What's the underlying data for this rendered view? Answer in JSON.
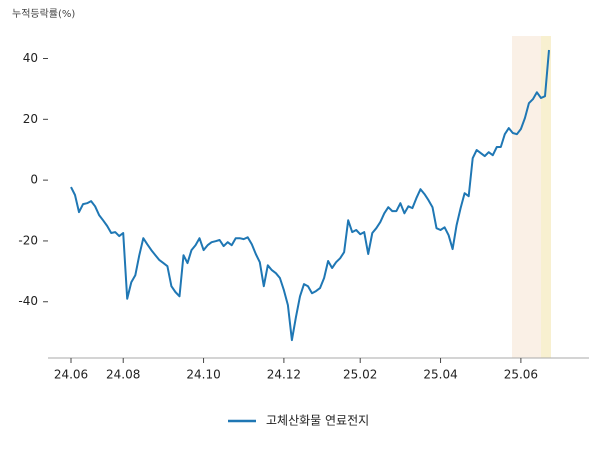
{
  "chart_data": {
    "type": "line",
    "y_label": "누적등락률(%)",
    "categories": [
      "24.06",
      null,
      null,
      null,
      null,
      null,
      null,
      null,
      null,
      null,
      null,
      null,
      null,
      "24.08",
      null,
      null,
      null,
      null,
      null,
      null,
      null,
      null,
      null,
      null,
      null,
      null,
      null,
      null,
      null,
      null,
      null,
      null,
      null,
      "24.10",
      null,
      null,
      null,
      null,
      null,
      null,
      null,
      null,
      null,
      null,
      null,
      null,
      null,
      null,
      null,
      null,
      null,
      null,
      null,
      "24.12",
      null,
      null,
      null,
      null,
      null,
      null,
      null,
      null,
      null,
      null,
      null,
      null,
      null,
      null,
      null,
      null,
      null,
      null,
      "25.02",
      null,
      null,
      null,
      null,
      null,
      null,
      null,
      null,
      null,
      null,
      null,
      null,
      null,
      null,
      null,
      null,
      null,
      null,
      null,
      "25.04",
      null,
      null,
      null,
      null,
      null,
      null,
      null,
      null,
      null,
      null,
      null,
      null,
      null,
      null,
      null,
      null,
      null,
      null,
      null,
      "25.06",
      null,
      null,
      null,
      null,
      null,
      null,
      null
    ],
    "series": [
      {
        "name": "고체산화물 연료전지",
        "color": "#1f77b4",
        "values": [
          -2.3,
          -4.9,
          -10.5,
          -7.9,
          -7.6,
          -6.9,
          -8.6,
          -11.5,
          -13.2,
          -15.1,
          -17.4,
          -17.1,
          -18.4,
          -17.4,
          -39,
          -33.6,
          -31.3,
          -24.7,
          -19.1,
          -21.1,
          -23.0,
          -24.7,
          -26.3,
          -27.3,
          -28.3,
          -34.9,
          -36.8,
          -38.2,
          -24.7,
          -27.3,
          -23.0,
          -21.4,
          -19.1,
          -23.0,
          -21.4,
          -20.4,
          -20.1,
          -19.7,
          -21.7,
          -20.4,
          -21.4,
          -19.1,
          -19.1,
          -19.4,
          -18.8,
          -21.1,
          -24.3,
          -27.0,
          -34.9,
          -28.0,
          -29.6,
          -30.6,
          -32.2,
          -36.2,
          -41.1,
          -52.6,
          -45.1,
          -38.2,
          -34.2,
          -34.9,
          -37.2,
          -36.5,
          -35.5,
          -32.2,
          -26.6,
          -28.9,
          -27.0,
          -25.7,
          -23.7,
          -13.2,
          -17.1,
          -16.4,
          -17.8,
          -17.1,
          -24.3,
          -17.4,
          -15.8,
          -13.8,
          -10.9,
          -8.9,
          -10.2,
          -10.2,
          -7.6,
          -10.9,
          -8.6,
          -9.2,
          -5.9,
          -3.0,
          -4.6,
          -6.6,
          -8.9,
          -15.8,
          -16.4,
          -15.5,
          -18.1,
          -22.7,
          -14.8,
          -9.2,
          -4.3,
          -5.3,
          7.2,
          9.9,
          8.9,
          7.9,
          9.2,
          8.2,
          10.9,
          10.9,
          15.1,
          17.1,
          15.5,
          15.1,
          16.8,
          20.4,
          25.3,
          26.6,
          28.9,
          27.0,
          27.6,
          42.8
        ]
      }
    ],
    "ylim": [
      -58.5,
      47.4
    ],
    "yticks": [
      -40,
      -20,
      0,
      20,
      40
    ],
    "grid": false
  }
}
